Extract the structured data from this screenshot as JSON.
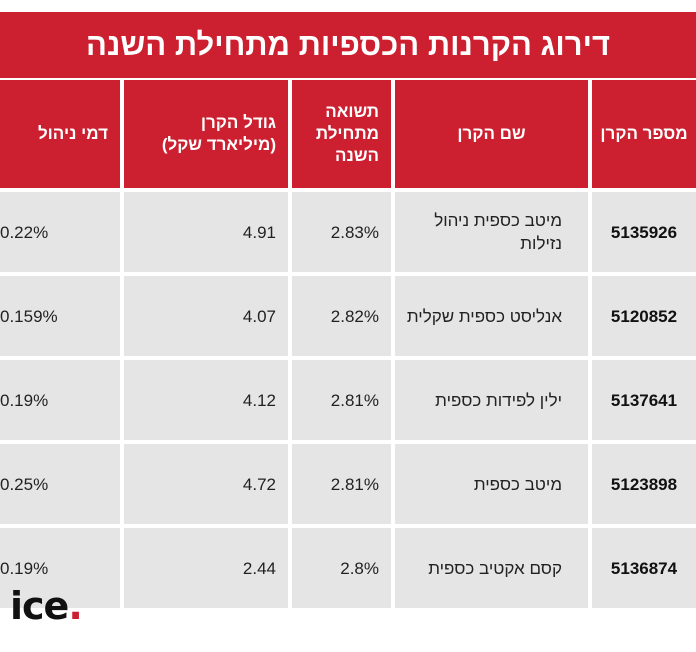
{
  "title": "דירוג הקרנות הכספיות מתחילת השנה",
  "headers": {
    "fund_number": "מספר הקרן",
    "fund_name": "שם הקרן",
    "ytd_return": "תשואה מתחילת השנה",
    "fund_size": "גודל הקרן (מיליארד שקל)",
    "mgmt_fee": "דמי ניהול"
  },
  "rows": [
    {
      "fund_number": "5135926",
      "fund_name": "מיטב כספית ניהול נזילות",
      "ytd_return": "2.83%",
      "fund_size": "4.91",
      "mgmt_fee": "0.22%"
    },
    {
      "fund_number": "5120852",
      "fund_name": "אנליסט כספית שקלית",
      "ytd_return": "2.82%",
      "fund_size": "4.07",
      "mgmt_fee": "0.159%"
    },
    {
      "fund_number": "5137641",
      "fund_name": "ילין לפידות כספית",
      "ytd_return": "2.81%",
      "fund_size": "4.12",
      "mgmt_fee": "0.19%"
    },
    {
      "fund_number": "5123898",
      "fund_name": "מיטב כספית",
      "ytd_return": "2.81%",
      "fund_size": "4.72",
      "mgmt_fee": "0.25%"
    },
    {
      "fund_number": "5136874",
      "fund_name": "קסם אקטיב כספית",
      "ytd_return": "2.8%",
      "fund_size": "2.44",
      "mgmt_fee": "0.19%"
    }
  ],
  "logo": {
    "text": "ice",
    "dot": "."
  },
  "colors": {
    "accent": "#cc1f2f",
    "row_bg": "#e5e5e5"
  }
}
